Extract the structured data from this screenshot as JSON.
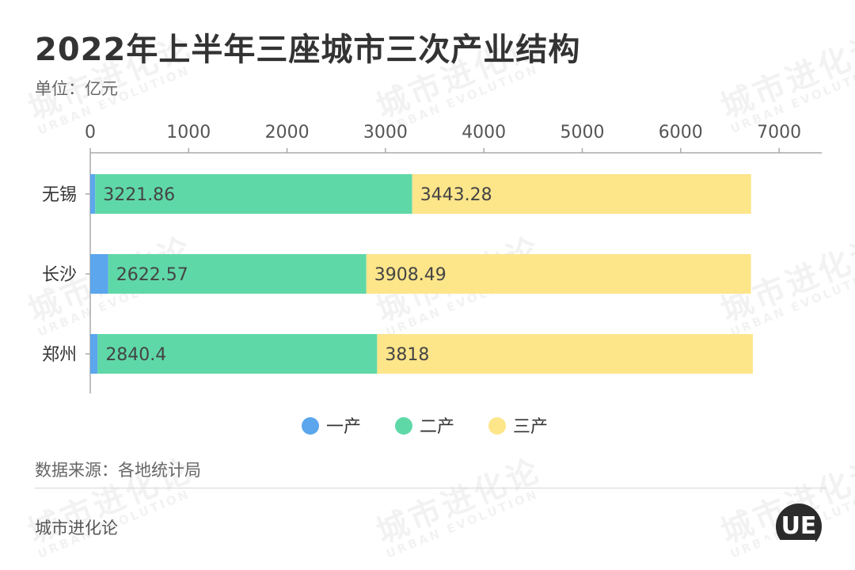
{
  "title": "2022年上半年三座城市三次产业结构",
  "unit": "单位：亿元",
  "source": "数据来源：各地统计局",
  "brand": "城市进化论",
  "watermark": {
    "main": "城市进化论",
    "sub": "URBAN EVOLUTION"
  },
  "logo_letters": "UE",
  "colors": {
    "primary": "#5ba6ec",
    "secondary": "#5fd8a8",
    "tertiary": "#fde58a",
    "axis": "#aaaaaa",
    "text": "#333333"
  },
  "chart_data": {
    "type": "bar",
    "orientation": "horizontal",
    "stacked": true,
    "categories": [
      "无锡",
      "长沙",
      "郑州"
    ],
    "series": [
      {
        "name": "一产",
        "values": [
          50,
          183,
          75
        ],
        "color": "#5ba6ec",
        "show_labels": false
      },
      {
        "name": "二产",
        "values": [
          3221.86,
          2622.57,
          2840.4
        ],
        "color": "#5fd8a8",
        "show_labels": true
      },
      {
        "name": "三产",
        "values": [
          3443.28,
          3908.49,
          3818
        ],
        "color": "#fde58a",
        "show_labels": true
      }
    ],
    "data_labels": [
      [
        "",
        "3221.86",
        "3443.28"
      ],
      [
        "",
        "2622.57",
        "3908.49"
      ],
      [
        "",
        "2840.4",
        "3818"
      ]
    ],
    "xlim": [
      0,
      7000
    ],
    "xticks": [
      0,
      1000,
      2000,
      3000,
      4000,
      5000,
      6000,
      7000
    ],
    "xtick_labels": [
      "0",
      "1000",
      "2000",
      "3000",
      "4000",
      "5000",
      "6000",
      "7000"
    ],
    "x_axis_position": "top",
    "grid": false,
    "legend": "bottom-center",
    "title": "2022年上半年三座城市三次产业结构",
    "xlabel": "",
    "ylabel": ""
  }
}
